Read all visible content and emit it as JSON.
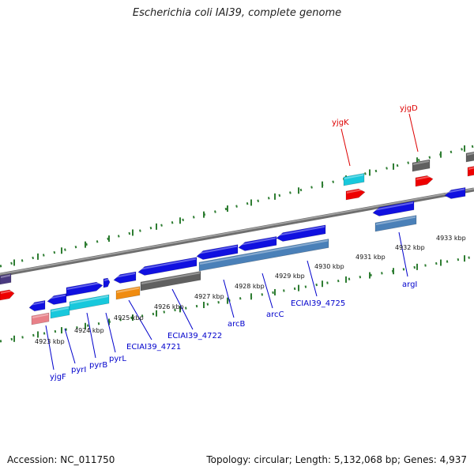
{
  "title": "Escherichia coli IAI39, complete genome",
  "footer": {
    "accession": "Accession: NC_011750",
    "summary": "Topology: circular; Length: 5,132,068 bp; Genes: 4,937"
  },
  "colors": {
    "backbone": "#8a8a8a",
    "tick_green": "#2e7d32",
    "label_blue": "#0000cc",
    "label_red": "#dd0000",
    "gene_blue": "#1010e0",
    "gene_cyan": "#18c8dc",
    "gene_lightblue": "#3aa8e8",
    "gene_steel": "#4a80b8",
    "gene_gray": "#606060",
    "gene_orange": "#f08c10",
    "gene_pink": "#e88088",
    "gene_red": "#ee0000",
    "gene_purple": "#4a3a80"
  },
  "ruler": [
    {
      "label": "4923 kbp"
    },
    {
      "label": "4924 kbp"
    },
    {
      "label": "4925 kbp"
    },
    {
      "label": "4926 kbp"
    },
    {
      "label": "4927 kbp"
    },
    {
      "label": "4928 kbp"
    },
    {
      "label": "4929 kbp"
    },
    {
      "label": "4930 kbp"
    },
    {
      "label": "4931 kbp"
    },
    {
      "label": "4932 kbp"
    },
    {
      "label": "4933 kbp"
    }
  ],
  "gene_labels_below": [
    {
      "name": "yjgF"
    },
    {
      "name": "pyrI"
    },
    {
      "name": "pyrB"
    },
    {
      "name": "pyrL"
    },
    {
      "name": "ECIAI39_4721"
    },
    {
      "name": "ECIAI39_4722"
    },
    {
      "name": "arcB"
    },
    {
      "name": "arcC"
    },
    {
      "name": "ECIAI39_4725"
    },
    {
      "name": "argI"
    }
  ],
  "gene_labels_above": [
    {
      "name": "yjgK"
    },
    {
      "name": "yjgD"
    }
  ]
}
